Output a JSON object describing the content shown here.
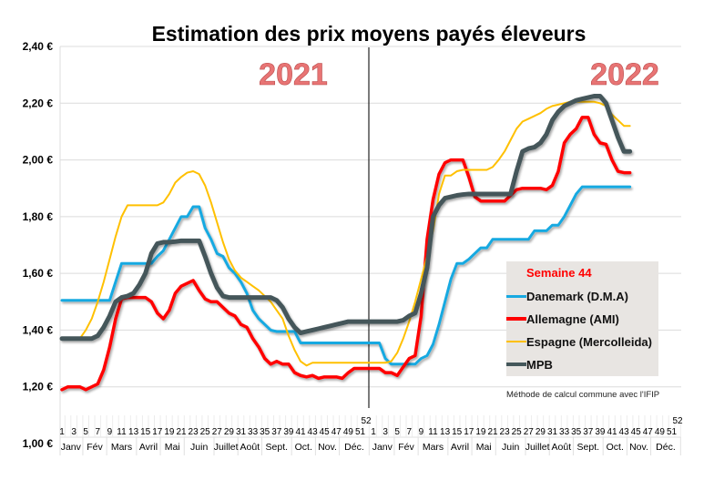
{
  "chart_data": {
    "type": "line",
    "title": "Estimation des prix moyens payés éleveurs",
    "year_labels": [
      "2021",
      "2022"
    ],
    "ylim": [
      1.0,
      2.4
    ],
    "y_ticks": [
      "1,00 €",
      "1,20 €",
      "1,40 €",
      "1,60 €",
      "1,80 €",
      "2,00 €",
      "2,20 €",
      "2,40 €"
    ],
    "y_tick_values": [
      1.0,
      1.2,
      1.4,
      1.6,
      1.8,
      2.0,
      2.2,
      2.4
    ],
    "grid": "horizontal",
    "week_labels": [
      "1",
      "3",
      "5",
      "7",
      "9",
      "11",
      "13",
      "15",
      "17",
      "19",
      "21",
      "23",
      "25",
      "27",
      "29",
      "31",
      "33",
      "35",
      "37",
      "39",
      "41",
      "43",
      "45",
      "47",
      "49",
      "51",
      "52"
    ],
    "week_label_values": [
      1,
      3,
      5,
      7,
      9,
      11,
      13,
      15,
      17,
      19,
      21,
      23,
      25,
      27,
      29,
      31,
      33,
      35,
      37,
      39,
      41,
      43,
      45,
      47,
      49,
      51,
      52
    ],
    "months": [
      {
        "label": "Janv",
        "start": 1,
        "end": 4
      },
      {
        "label": "Fév",
        "start": 5,
        "end": 8
      },
      {
        "label": "Mars",
        "start": 9,
        "end": 13
      },
      {
        "label": "Avril",
        "start": 14,
        "end": 17
      },
      {
        "label": "Mai",
        "start": 18,
        "end": 21
      },
      {
        "label": "Juin",
        "start": 22,
        "end": 26
      },
      {
        "label": "Juillet",
        "start": 27,
        "end": 30
      },
      {
        "label": "Août",
        "start": 31,
        "end": 34
      },
      {
        "label": "Sept.",
        "start": 35,
        "end": 39
      },
      {
        "label": "Oct.",
        "start": 40,
        "end": 43
      },
      {
        "label": "Nov.",
        "start": 44,
        "end": 47
      },
      {
        "label": "Déc.",
        "start": 48,
        "end": 52
      }
    ],
    "legend": {
      "title": "Semaine 44",
      "placement": "right",
      "note": "Méthode de calcul commune avec l'IFIP"
    },
    "series": [
      {
        "name": "Danemark (D.M.A)",
        "color": "#17a9e1",
        "values_2021": [
          1.505,
          1.505,
          1.505,
          1.505,
          1.505,
          1.505,
          1.505,
          1.505,
          1.505,
          1.57,
          1.635,
          1.635,
          1.635,
          1.635,
          1.635,
          1.635,
          1.66,
          1.68,
          1.72,
          1.76,
          1.8,
          1.8,
          1.835,
          1.835,
          1.76,
          1.72,
          1.67,
          1.66,
          1.62,
          1.6,
          1.57,
          1.53,
          1.47,
          1.44,
          1.42,
          1.4,
          1.395,
          1.395,
          1.395,
          1.395,
          1.355,
          1.355,
          1.355,
          1.355,
          1.355,
          1.355,
          1.355,
          1.355,
          1.355,
          1.355,
          1.355,
          1.355
        ],
        "values_2022": [
          1.355,
          1.355,
          1.3,
          1.28,
          1.28,
          1.28,
          1.28,
          1.28,
          1.3,
          1.31,
          1.35,
          1.42,
          1.5,
          1.58,
          1.635,
          1.635,
          1.65,
          1.67,
          1.69,
          1.69,
          1.72,
          1.72,
          1.72,
          1.72,
          1.72,
          1.72,
          1.72,
          1.75,
          1.75,
          1.75,
          1.77,
          1.77,
          1.8,
          1.84,
          1.88,
          1.905,
          1.905,
          1.905,
          1.905,
          1.905,
          1.905,
          1.905,
          1.905,
          1.905
        ]
      },
      {
        "name": "Allemagne (AMI)",
        "color": "#ff0000",
        "values_2021": [
          1.19,
          1.2,
          1.2,
          1.2,
          1.19,
          1.2,
          1.21,
          1.26,
          1.34,
          1.44,
          1.51,
          1.515,
          1.515,
          1.515,
          1.515,
          1.5,
          1.46,
          1.44,
          1.47,
          1.53,
          1.555,
          1.565,
          1.575,
          1.54,
          1.51,
          1.5,
          1.5,
          1.48,
          1.46,
          1.45,
          1.42,
          1.41,
          1.37,
          1.34,
          1.3,
          1.28,
          1.29,
          1.28,
          1.28,
          1.25,
          1.24,
          1.235,
          1.24,
          1.23,
          1.235,
          1.235,
          1.235,
          1.23,
          1.25,
          1.265,
          1.265,
          1.265
        ],
        "values_2022": [
          1.265,
          1.265,
          1.25,
          1.25,
          1.24,
          1.27,
          1.3,
          1.31,
          1.45,
          1.72,
          1.86,
          1.95,
          1.99,
          2.0,
          2.0,
          2.0,
          1.94,
          1.87,
          1.855,
          1.855,
          1.855,
          1.855,
          1.855,
          1.875,
          1.895,
          1.9,
          1.9,
          1.9,
          1.9,
          1.895,
          1.91,
          1.96,
          2.06,
          2.09,
          2.11,
          2.15,
          2.15,
          2.09,
          2.06,
          2.055,
          2.0,
          1.96,
          1.955,
          1.955
        ]
      },
      {
        "name": "Espagne (Mercolleida)",
        "color": "#ffc000",
        "values_2021": [
          1.37,
          1.37,
          1.37,
          1.37,
          1.4,
          1.44,
          1.5,
          1.57,
          1.65,
          1.73,
          1.8,
          1.84,
          1.84,
          1.84,
          1.84,
          1.84,
          1.84,
          1.85,
          1.88,
          1.92,
          1.94,
          1.955,
          1.96,
          1.95,
          1.91,
          1.85,
          1.78,
          1.71,
          1.65,
          1.61,
          1.585,
          1.57,
          1.555,
          1.54,
          1.52,
          1.5,
          1.47,
          1.44,
          1.38,
          1.33,
          1.29,
          1.275,
          1.285,
          1.285,
          1.285,
          1.285,
          1.285,
          1.285,
          1.285,
          1.285,
          1.285,
          1.285
        ],
        "values_2022": [
          1.285,
          1.285,
          1.285,
          1.29,
          1.32,
          1.37,
          1.43,
          1.5,
          1.58,
          1.66,
          1.75,
          1.88,
          1.945,
          1.945,
          1.96,
          1.965,
          1.965,
          1.965,
          1.965,
          1.965,
          1.975,
          2.0,
          2.03,
          2.07,
          2.11,
          2.135,
          2.145,
          2.155,
          2.165,
          2.18,
          2.19,
          2.195,
          2.2,
          2.205,
          2.205,
          2.205,
          2.205,
          2.205,
          2.2,
          2.19,
          2.16,
          2.14,
          2.12,
          2.12
        ]
      },
      {
        "name": "MPB",
        "color": "#44575a",
        "values_2021": [
          1.37,
          1.37,
          1.37,
          1.37,
          1.37,
          1.37,
          1.38,
          1.41,
          1.45,
          1.5,
          1.515,
          1.52,
          1.53,
          1.56,
          1.6,
          1.67,
          1.705,
          1.71,
          1.71,
          1.712,
          1.715,
          1.715,
          1.715,
          1.715,
          1.66,
          1.6,
          1.55,
          1.52,
          1.515,
          1.515,
          1.515,
          1.515,
          1.515,
          1.515,
          1.515,
          1.515,
          1.505,
          1.48,
          1.44,
          1.41,
          1.39,
          1.395,
          1.4,
          1.405,
          1.41,
          1.415,
          1.42,
          1.425,
          1.43,
          1.43,
          1.43,
          1.43
        ],
        "values_2022": [
          1.43,
          1.43,
          1.43,
          1.43,
          1.43,
          1.435,
          1.45,
          1.46,
          1.53,
          1.62,
          1.8,
          1.84,
          1.865,
          1.87,
          1.875,
          1.878,
          1.88,
          1.88,
          1.88,
          1.88,
          1.88,
          1.88,
          1.88,
          1.88,
          1.96,
          2.03,
          2.04,
          2.045,
          2.06,
          2.09,
          2.14,
          2.17,
          2.19,
          2.2,
          2.21,
          2.215,
          2.22,
          2.225,
          2.225,
          2.2,
          2.14,
          2.08,
          2.03,
          2.03
        ]
      }
    ]
  }
}
